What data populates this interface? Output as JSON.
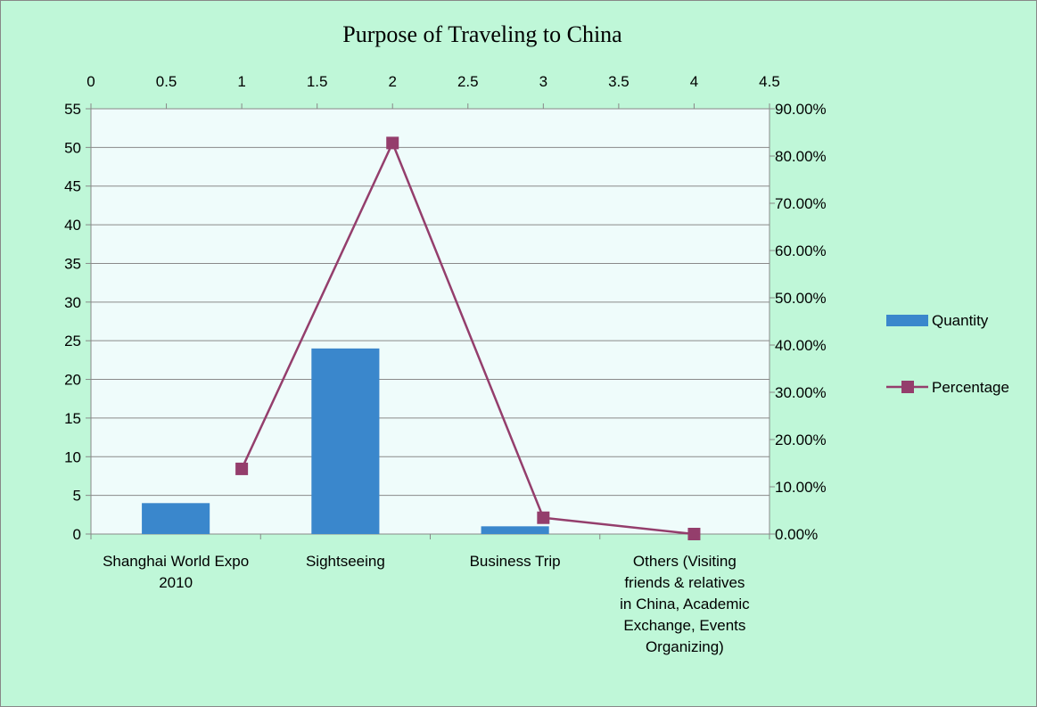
{
  "chart_data": {
    "type": "bar",
    "title": "Purpose of Traveling to China",
    "categories": [
      "Shanghai World Expo 2010",
      "Sightseeing",
      "Business Trip",
      "Others (Visiting friends & relatives in China, Academic Exchange, Events Organizing)"
    ],
    "series": [
      {
        "name": "Quantity",
        "type": "bar",
        "axis": "primary",
        "values": [
          4,
          24,
          1,
          0
        ],
        "color": "#3a87cc"
      },
      {
        "name": "Percentage",
        "type": "line",
        "axis": "secondary",
        "x": [
          1,
          2,
          3,
          4
        ],
        "values": [
          0.1379,
          0.8276,
          0.0345,
          0.0
        ],
        "color": "#943e6c"
      }
    ],
    "y_left": {
      "min": 0,
      "max": 55,
      "step": 5
    },
    "y_right": {
      "min": 0,
      "max": 0.9,
      "step": 0.1,
      "format": "percent_2dp"
    },
    "x_top": {
      "min": 0,
      "max": 4.5,
      "step": 0.5
    },
    "legend_position": "right",
    "grid": "horizontal",
    "colors": {
      "background": "#bff7d8",
      "plot_area": "#effcfb",
      "gridline": "#8a8a8a",
      "axis": "#888888"
    }
  }
}
